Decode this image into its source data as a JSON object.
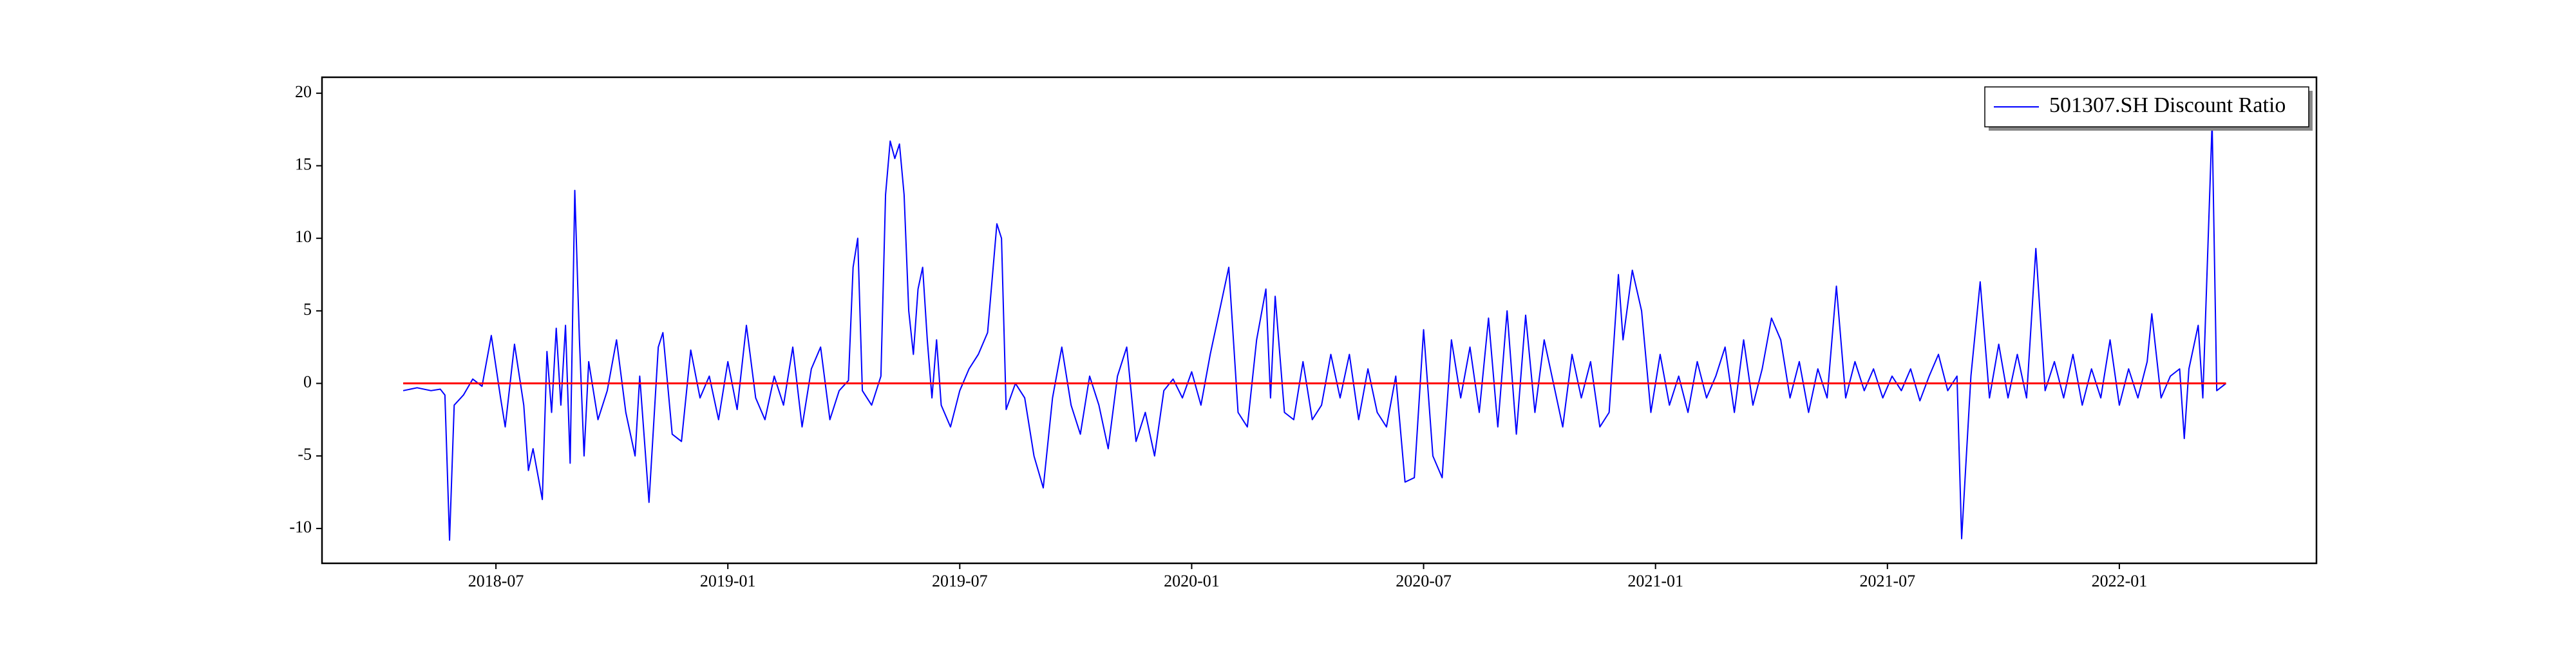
{
  "chart_data": {
    "type": "line",
    "series": [
      {
        "name": "501307.SH Discount Ratio",
        "color": "#0000ff",
        "x": [
          2018.3,
          2018.33,
          2018.36,
          2018.38,
          2018.39,
          2018.4,
          2018.41,
          2018.43,
          2018.45,
          2018.47,
          2018.49,
          2018.51,
          2018.52,
          2018.54,
          2018.56,
          2018.57,
          2018.58,
          2018.6,
          2018.61,
          2018.62,
          2018.63,
          2018.64,
          2018.65,
          2018.66,
          2018.67,
          2018.68,
          2018.69,
          2018.7,
          2018.72,
          2018.74,
          2018.76,
          2018.78,
          2018.8,
          2018.81,
          2018.83,
          2018.85,
          2018.86,
          2018.88,
          2018.9,
          2018.92,
          2018.94,
          2018.96,
          2018.98,
          2019.0,
          2019.02,
          2019.04,
          2019.06,
          2019.08,
          2019.1,
          2019.12,
          2019.14,
          2019.16,
          2019.18,
          2019.2,
          2019.22,
          2019.24,
          2019.26,
          2019.27,
          2019.28,
          2019.29,
          2019.31,
          2019.33,
          2019.34,
          2019.35,
          2019.36,
          2019.37,
          2019.38,
          2019.39,
          2019.4,
          2019.41,
          2019.42,
          2019.43,
          2019.44,
          2019.45,
          2019.46,
          2019.48,
          2019.5,
          2019.52,
          2019.54,
          2019.56,
          2019.58,
          2019.59,
          2019.6,
          2019.62,
          2019.64,
          2019.66,
          2019.68,
          2019.7,
          2019.72,
          2019.74,
          2019.76,
          2019.78,
          2019.8,
          2019.82,
          2019.84,
          2019.86,
          2019.88,
          2019.9,
          2019.92,
          2019.94,
          2019.96,
          2019.98,
          2020.0,
          2020.02,
          2020.04,
          2020.06,
          2020.08,
          2020.1,
          2020.12,
          2020.14,
          2020.16,
          2020.17,
          2020.18,
          2020.2,
          2020.22,
          2020.24,
          2020.26,
          2020.28,
          2020.3,
          2020.32,
          2020.34,
          2020.36,
          2020.38,
          2020.4,
          2020.42,
          2020.44,
          2020.46,
          2020.48,
          2020.5,
          2020.52,
          2020.54,
          2020.56,
          2020.58,
          2020.6,
          2020.62,
          2020.64,
          2020.66,
          2020.68,
          2020.7,
          2020.72,
          2020.74,
          2020.76,
          2020.78,
          2020.8,
          2020.82,
          2020.84,
          2020.86,
          2020.88,
          2020.9,
          2020.92,
          2020.93,
          2020.95,
          2020.97,
          2020.99,
          2021.01,
          2021.03,
          2021.05,
          2021.07,
          2021.09,
          2021.11,
          2021.13,
          2021.15,
          2021.17,
          2021.19,
          2021.21,
          2021.23,
          2021.25,
          2021.27,
          2021.29,
          2021.31,
          2021.33,
          2021.35,
          2021.37,
          2021.39,
          2021.41,
          2021.43,
          2021.45,
          2021.47,
          2021.49,
          2021.51,
          2021.53,
          2021.55,
          2021.57,
          2021.59,
          2021.61,
          2021.63,
          2021.65,
          2021.66,
          2021.68,
          2021.7,
          2021.72,
          2021.74,
          2021.76,
          2021.78,
          2021.8,
          2021.82,
          2021.84,
          2021.86,
          2021.88,
          2021.9,
          2021.92,
          2021.94,
          2021.96,
          2021.98,
          2022.0,
          2022.02,
          2022.04,
          2022.06,
          2022.07,
          2022.09,
          2022.11,
          2022.13,
          2022.14,
          2022.15,
          2022.17,
          2022.18,
          2022.2,
          2022.21,
          2022.23
        ],
        "values": [
          -0.5,
          -0.3,
          -0.5,
          -0.4,
          -0.8,
          -10.8,
          -1.5,
          -0.8,
          0.3,
          -0.2,
          3.3,
          -1.0,
          -3.0,
          2.7,
          -1.5,
          -6.0,
          -4.5,
          -8.0,
          2.2,
          -2.0,
          3.8,
          -1.5,
          4.0,
          -5.5,
          13.3,
          3.0,
          -5.0,
          1.5,
          -2.5,
          -0.5,
          3.0,
          -2.0,
          -5.0,
          0.5,
          -8.2,
          2.5,
          3.5,
          -3.5,
          -4.0,
          2.3,
          -1.0,
          0.5,
          -2.5,
          1.5,
          -1.8,
          4.0,
          -1.0,
          -2.5,
          0.5,
          -1.5,
          2.5,
          -3.0,
          1.0,
          2.5,
          -2.5,
          -0.5,
          0.2,
          8.0,
          10.0,
          -0.5,
          -1.5,
          0.5,
          13.0,
          16.7,
          15.5,
          16.5,
          13.0,
          5.0,
          2.0,
          6.5,
          8.0,
          3.0,
          -1.0,
          3.0,
          -1.5,
          -3.0,
          -0.5,
          1.0,
          2.0,
          3.5,
          11.0,
          10.0,
          -1.8,
          0.0,
          -1.0,
          -5.0,
          -7.2,
          -1.0,
          2.5,
          -1.5,
          -3.5,
          0.5,
          -1.5,
          -4.5,
          0.5,
          2.5,
          -4.0,
          -2.0,
          -5.0,
          -0.5,
          0.3,
          -1.0,
          0.8,
          -1.5,
          2.0,
          5.0,
          8.0,
          -2.0,
          -3.0,
          3.0,
          6.5,
          -1.0,
          6.0,
          -2.0,
          -2.5,
          1.5,
          -2.5,
          -1.5,
          2.0,
          -1.0,
          2.0,
          -2.5,
          1.0,
          -2.0,
          -3.0,
          0.5,
          -6.8,
          -6.5,
          3.7,
          -5.0,
          -6.5,
          3.0,
          -1.0,
          2.5,
          -2.0,
          4.5,
          -3.0,
          5.0,
          -3.5,
          4.7,
          -2.0,
          3.0,
          0.0,
          -3.0,
          2.0,
          -1.0,
          1.5,
          -3.0,
          -2.0,
          7.5,
          3.0,
          7.8,
          5.0,
          -2.0,
          2.0,
          -1.5,
          0.5,
          -2.0,
          1.5,
          -1.0,
          0.5,
          2.5,
          -2.0,
          3.0,
          -1.5,
          1.0,
          4.5,
          3.0,
          -1.0,
          1.5,
          -2.0,
          1.0,
          -1.0,
          6.7,
          -1.0,
          1.5,
          -0.5,
          1.0,
          -1.0,
          0.5,
          -0.5,
          1.0,
          -1.2,
          0.5,
          2.0,
          -0.5,
          0.5,
          -10.7,
          0.5,
          7.0,
          -1.0,
          2.7,
          -1.0,
          2.0,
          -1.0,
          9.3,
          -0.5,
          1.5,
          -1.0,
          2.0,
          -1.5,
          1.0,
          -1.0,
          3.0,
          -1.5,
          1.0,
          -1.0,
          1.5,
          4.8,
          -1.0,
          0.5,
          1.0,
          -3.8,
          1.0,
          4.0,
          -1.0,
          18.0,
          -0.5,
          0.0
        ]
      }
    ],
    "hline": {
      "y": 0,
      "xmin": 2018.3,
      "xmax": 2022.23,
      "color": "#ff0000"
    },
    "xlim": [
      2018.125,
      2022.425
    ],
    "ylim": [
      -12.4,
      21.1
    ],
    "xticks": [
      {
        "value": 2018.5,
        "label": "2018-07"
      },
      {
        "value": 2019.0,
        "label": "2019-01"
      },
      {
        "value": 2019.5,
        "label": "2019-07"
      },
      {
        "value": 2020.0,
        "label": "2020-01"
      },
      {
        "value": 2020.5,
        "label": "2020-07"
      },
      {
        "value": 2021.0,
        "label": "2021-01"
      },
      {
        "value": 2021.5,
        "label": "2021-07"
      },
      {
        "value": 2022.0,
        "label": "2022-01"
      }
    ],
    "yticks": [
      -10,
      -5,
      0,
      5,
      10,
      15,
      20
    ],
    "grid": false,
    "legend": "upper right"
  }
}
